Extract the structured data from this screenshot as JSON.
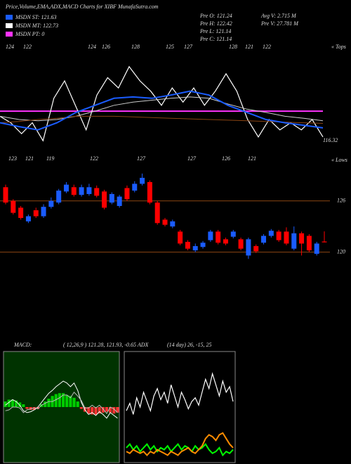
{
  "header": {
    "title": "Price,Volume,EMA,ADX,MACD Charts for XIBF MunafaSutra.com",
    "legend": [
      "MSDN ST: 121.63",
      "MSDN MT: 122.73",
      "MSDN PT: 0"
    ],
    "legend_colors": [
      "#1a5cff",
      "#ffffff",
      "#ff33ff"
    ],
    "stats": [
      "Pre  O: 121.24",
      "Pre  H: 122.42",
      "Pre  L: 121.14",
      "Pre  C: 121.14",
      "Avg  V: 2.715 M",
      "Pre  V: 27.781 M"
    ]
  },
  "chart_data": [
    {
      "type": "line",
      "ylim": [
        113,
        131
      ],
      "reference_lines": [
        120.3
      ],
      "reference_color": "#ff33ff",
      "last_label": "116.32",
      "top_labels": [
        "124",
        "122",
        "124",
        "126",
        "128",
        "125",
        "127",
        "128",
        "121",
        "122"
      ],
      "tops_label": "« Tops",
      "low_labels": [
        "123",
        "121",
        "119",
        "122",
        "127",
        "127",
        "126",
        "121"
      ],
      "lows_label": "« Lows",
      "series": [
        {
          "color": "#ffffff",
          "width": 1.2,
          "values": [
            119.5,
            118.5,
            116.8,
            118.5,
            115.7,
            122.3,
            125.0,
            121.2,
            117.4,
            122.8,
            125.5,
            123.9,
            127.2,
            125.0,
            123.4,
            121.2,
            123.9,
            121.7,
            123.9,
            121.2,
            123.4,
            126.1,
            123.4,
            119.0,
            116.3,
            119.0,
            117.4,
            118.5,
            117.4,
            119.0,
            116.3
          ]
        },
        {
          "color": "#cccccc",
          "width": 1,
          "values": [
            119.5,
            119.0,
            118.8,
            119.0,
            119.5,
            120.3,
            121.2,
            121.7,
            122.0,
            122.3,
            122.5,
            122.3,
            121.4,
            120.6,
            120.1,
            119.5,
            119.2,
            118.8
          ]
        },
        {
          "color": "#8b4513",
          "width": 1,
          "values": [
            118.5,
            118.7,
            119.0,
            119.2,
            119.5,
            119.5,
            119.5,
            119.4,
            119.3,
            119.2,
            119.1,
            119.0,
            118.9,
            118.8,
            118.7,
            118.6,
            118.5,
            118.4
          ]
        },
        {
          "color": "#1a5cff",
          "width": 2,
          "values": [
            118.5,
            117.9,
            117.4,
            118.5,
            120.1,
            121.2,
            122.3,
            122.5,
            122.3,
            122.8,
            123.4,
            122.8,
            121.2,
            120.1,
            119.0,
            118.5,
            118.1,
            117.7
          ]
        }
      ]
    },
    {
      "type": "candlestick",
      "ylim": [
        110,
        131
      ],
      "yticks": [
        126,
        120
      ],
      "grid_color": "#8b4513",
      "up_color": "#1a5cff",
      "down_color": "#ff0000",
      "open": [
        127.6,
        126.0,
        125.2,
        123.6,
        124.9,
        124.2,
        125.3,
        125.8,
        127.1,
        127.6,
        126.7,
        126.8,
        127.5,
        127.1,
        125.8,
        125.4,
        127.5,
        127.2,
        128.0,
        128.2,
        125.8,
        123.8,
        123.0,
        122.4,
        121.2,
        120.2,
        120.6,
        121.4,
        122.4,
        121.5,
        121.8,
        121.5,
        119.6,
        120.7,
        121.1,
        121.9,
        122.4,
        122.4,
        120.4,
        122.2,
        121.9,
        119.8,
        121.24
      ],
      "high": [
        127.9,
        126.2,
        125.4,
        124.4,
        125.2,
        125.6,
        126.4,
        127.4,
        128.2,
        127.9,
        127.9,
        128.0,
        127.8,
        127.3,
        127.0,
        126.7,
        127.8,
        128.3,
        129.2,
        128.4,
        126.0,
        124.0,
        123.8,
        122.6,
        121.4,
        121.0,
        121.3,
        122.6,
        122.6,
        121.7,
        122.6,
        121.7,
        121.7,
        120.9,
        122.1,
        122.7,
        122.6,
        122.9,
        123.0,
        122.4,
        122.1,
        121.2,
        122.42
      ],
      "low": [
        125.6,
        124.4,
        123.8,
        123.4,
        124.0,
        124.0,
        125.1,
        125.6,
        126.9,
        126.5,
        126.5,
        126.6,
        126.4,
        125.0,
        125.6,
        125.2,
        126.0,
        127.0,
        127.8,
        125.6,
        123.2,
        123.0,
        122.8,
        120.8,
        120.2,
        120.0,
        120.4,
        121.2,
        120.9,
        120.8,
        121.6,
        120.2,
        119.2,
        119.9,
        120.9,
        121.7,
        121.2,
        120.8,
        120.2,
        119.6,
        120.0,
        119.6,
        121.14
      ],
      "close": [
        125.8,
        124.6,
        124.0,
        124.2,
        124.2,
        125.3,
        126.0,
        127.2,
        127.9,
        126.7,
        127.6,
        127.6,
        126.6,
        125.2,
        126.8,
        126.5,
        126.2,
        128.0,
        128.7,
        125.8,
        123.4,
        123.2,
        123.6,
        121.0,
        120.4,
        120.7,
        121.1,
        122.4,
        121.1,
        121.0,
        122.4,
        120.4,
        121.5,
        120.1,
        121.9,
        122.5,
        121.4,
        121.0,
        122.2,
        121.0,
        120.2,
        121.0,
        121.14
      ]
    },
    {
      "type": "macd",
      "title": "MACD:",
      "subtitle": "( 12,26,9 ) 121.28, 121.93, -0.65 ADX",
      "ylim": [
        -6,
        6
      ],
      "background": "#003300",
      "up_color": "#00cc00",
      "down_color": "#ff3333",
      "bar_values": [
        0.6,
        0.8,
        0.8,
        0.7,
        0.5,
        0.3,
        -0.2,
        -0.3,
        -0.3,
        -0.2,
        0.3,
        0.6,
        0.9,
        1.2,
        1.4,
        1.5,
        1.5,
        1.3,
        1.2,
        1.0,
        0.6,
        -0.2,
        -0.5,
        -0.7,
        -0.8,
        -0.8,
        -0.7,
        -0.6,
        -0.5,
        -0.6,
        -0.7,
        -0.6
      ],
      "series": [
        {
          "color": "#ffffff",
          "values": [
            0.2,
            0.5,
            0.8,
            0.6,
            0.2,
            -0.4,
            -0.6,
            -0.5,
            -0.3,
            0,
            0.5,
            1.0,
            1.5,
            1.8,
            2.2,
            2.5,
            2.8,
            2.6,
            2.2,
            2.6,
            1.8,
            0.5,
            -0.3,
            -0.8,
            -0.6,
            -0.9,
            -0.5,
            -0.8,
            -1.2,
            -0.6,
            -0.9,
            -1.2
          ]
        },
        {
          "color": "#bbbbbb",
          "values": [
            -0.4,
            -0.3,
            0,
            0,
            -0.1,
            -0.6,
            -0.3,
            -0.2,
            -0.1,
            -0.2,
            0.2,
            0.4,
            0.6,
            0.6,
            0.8,
            1.0,
            1.3,
            1.3,
            1.0,
            1.6,
            1.2,
            0.7,
            -0.1,
            -0.1,
            0.2,
            -0.1,
            0.2,
            -0.2,
            -0.7,
            0,
            -0.2,
            -0.6
          ]
        }
      ]
    },
    {
      "type": "adx",
      "subtitle": "(14 day) 26, -15, 25",
      "ylim": [
        0,
        60
      ],
      "background": "#000000",
      "series": [
        {
          "color": "#ffffff",
          "values": [
            28,
            32,
            26,
            35,
            30,
            38,
            33,
            28,
            36,
            40,
            34,
            38,
            32,
            42,
            36,
            30,
            38,
            34,
            29,
            33,
            35,
            31,
            38,
            45,
            40,
            48,
            42,
            36,
            44,
            38,
            41,
            33
          ]
        },
        {
          "color": "#00ff00",
          "values": [
            8,
            10,
            7,
            9,
            6,
            8,
            10,
            7,
            9,
            6,
            8,
            7,
            9,
            6,
            8,
            10,
            7,
            9,
            8,
            6,
            9,
            7,
            8,
            10,
            7,
            5,
            6,
            8,
            4,
            6,
            5,
            7
          ]
        },
        {
          "color": "#ff8c00",
          "values": [
            6,
            5,
            7,
            6,
            5,
            6,
            4,
            6,
            5,
            7,
            6,
            5,
            4,
            6,
            5,
            4,
            6,
            7,
            8,
            6,
            5,
            7,
            9,
            13,
            15,
            14,
            12,
            15,
            16,
            13,
            10,
            8
          ]
        }
      ]
    }
  ]
}
